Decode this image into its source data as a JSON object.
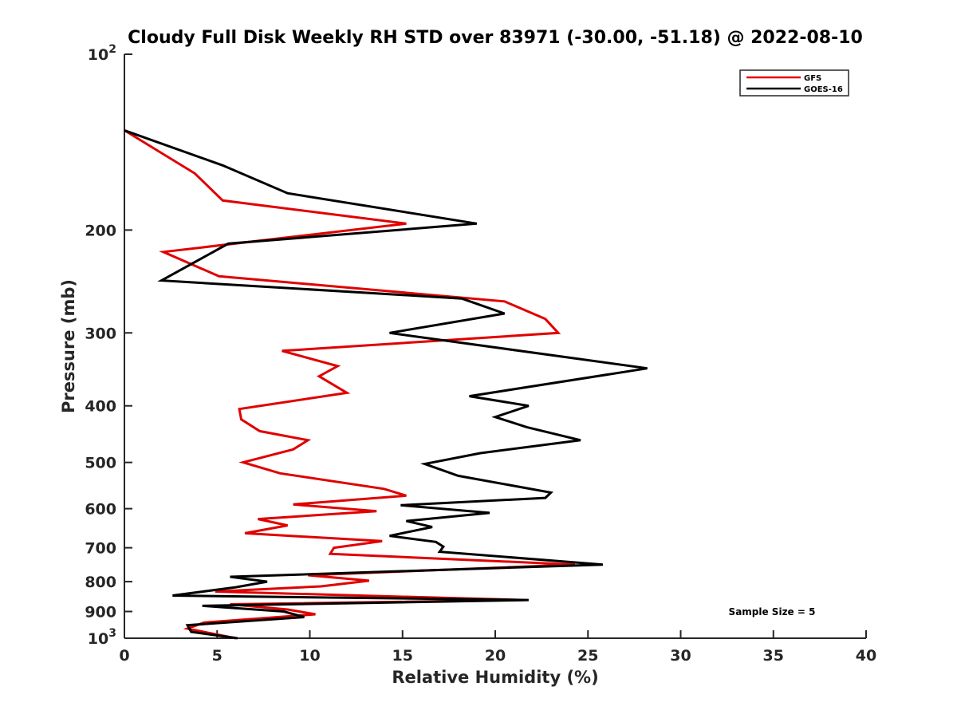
{
  "chart_data": {
    "type": "line",
    "title": "Cloudy Full Disk Weekly RH STD over 83971 (-30.00, -51.18) @ 2022-08-10",
    "xlabel": "Relative Humidity (%)",
    "ylabel": "Pressure (mb)",
    "xlim": [
      0,
      40
    ],
    "ylim": [
      100,
      1000
    ],
    "yscale": "log",
    "y_reversed": true,
    "xticks": [
      0,
      5,
      10,
      15,
      20,
      25,
      30,
      35,
      40
    ],
    "yticks": [
      {
        "value": 100,
        "base": "10",
        "exp": "2"
      },
      {
        "value": 200,
        "label": "200"
      },
      {
        "value": 300,
        "label": "300"
      },
      {
        "value": 400,
        "label": "400"
      },
      {
        "value": 500,
        "label": "500"
      },
      {
        "value": 600,
        "label": "600"
      },
      {
        "value": 700,
        "label": "700"
      },
      {
        "value": 800,
        "label": "800"
      },
      {
        "value": 900,
        "label": "900"
      },
      {
        "value": 1000,
        "base": "10",
        "exp": "3"
      }
    ],
    "grid": false,
    "legend_position": "top-right",
    "annotation": "Sample Size = 5",
    "series": [
      {
        "name": "GFS",
        "color": "#e00000",
        "points": [
          [
            0.0,
            135
          ],
          [
            3.8,
            160
          ],
          [
            5.3,
            178
          ],
          [
            15.2,
            195
          ],
          [
            2.1,
            218
          ],
          [
            5.1,
            240
          ],
          [
            20.5,
            265
          ],
          [
            22.7,
            284
          ],
          [
            23.4,
            300
          ],
          [
            8.5,
            322
          ],
          [
            11.5,
            342
          ],
          [
            10.5,
            356
          ],
          [
            12.0,
            380
          ],
          [
            6.2,
            405
          ],
          [
            6.3,
            422
          ],
          [
            7.3,
            442
          ],
          [
            9.9,
            458
          ],
          [
            9.1,
            475
          ],
          [
            6.4,
            500
          ],
          [
            8.4,
            522
          ],
          [
            14.0,
            555
          ],
          [
            15.2,
            570
          ],
          [
            9.1,
            590
          ],
          [
            13.6,
            606
          ],
          [
            7.2,
            625
          ],
          [
            8.8,
            641
          ],
          [
            6.5,
            661
          ],
          [
            13.9,
            682
          ],
          [
            11.3,
            700
          ],
          [
            11.1,
            717
          ],
          [
            24.3,
            748
          ],
          [
            9.9,
            780
          ],
          [
            13.2,
            797
          ],
          [
            10.6,
            815
          ],
          [
            4.9,
            832
          ],
          [
            21.5,
            860
          ],
          [
            5.7,
            875
          ],
          [
            8.8,
            893
          ],
          [
            10.3,
            910
          ],
          [
            4.3,
            940
          ],
          [
            3.4,
            963
          ],
          [
            6.0,
            1000
          ]
        ]
      },
      {
        "name": "GOES-16",
        "color": "#000000",
        "points": [
          [
            0.0,
            135
          ],
          [
            5.3,
            155
          ],
          [
            8.8,
            173
          ],
          [
            19.0,
            195
          ],
          [
            5.6,
            211
          ],
          [
            2.0,
            244
          ],
          [
            18.2,
            262
          ],
          [
            20.5,
            278
          ],
          [
            14.3,
            300
          ],
          [
            28.2,
            345
          ],
          [
            18.6,
            385
          ],
          [
            21.8,
            400
          ],
          [
            20.0,
            418
          ],
          [
            21.7,
            435
          ],
          [
            24.6,
            458
          ],
          [
            19.2,
            482
          ],
          [
            16.2,
            503
          ],
          [
            18.0,
            527
          ],
          [
            23.0,
            563
          ],
          [
            22.7,
            575
          ],
          [
            14.9,
            592
          ],
          [
            19.7,
            610
          ],
          [
            15.2,
            630
          ],
          [
            16.6,
            645
          ],
          [
            14.3,
            668
          ],
          [
            16.8,
            684
          ],
          [
            17.2,
            697
          ],
          [
            17.0,
            711
          ],
          [
            25.8,
            748
          ],
          [
            5.7,
            785
          ],
          [
            7.7,
            800
          ],
          [
            6.0,
            818
          ],
          [
            2.6,
            845
          ],
          [
            21.8,
            860
          ],
          [
            4.2,
            880
          ],
          [
            8.6,
            900
          ],
          [
            9.7,
            920
          ],
          [
            3.4,
            950
          ],
          [
            3.6,
            975
          ],
          [
            6.1,
            1000
          ]
        ]
      }
    ]
  }
}
